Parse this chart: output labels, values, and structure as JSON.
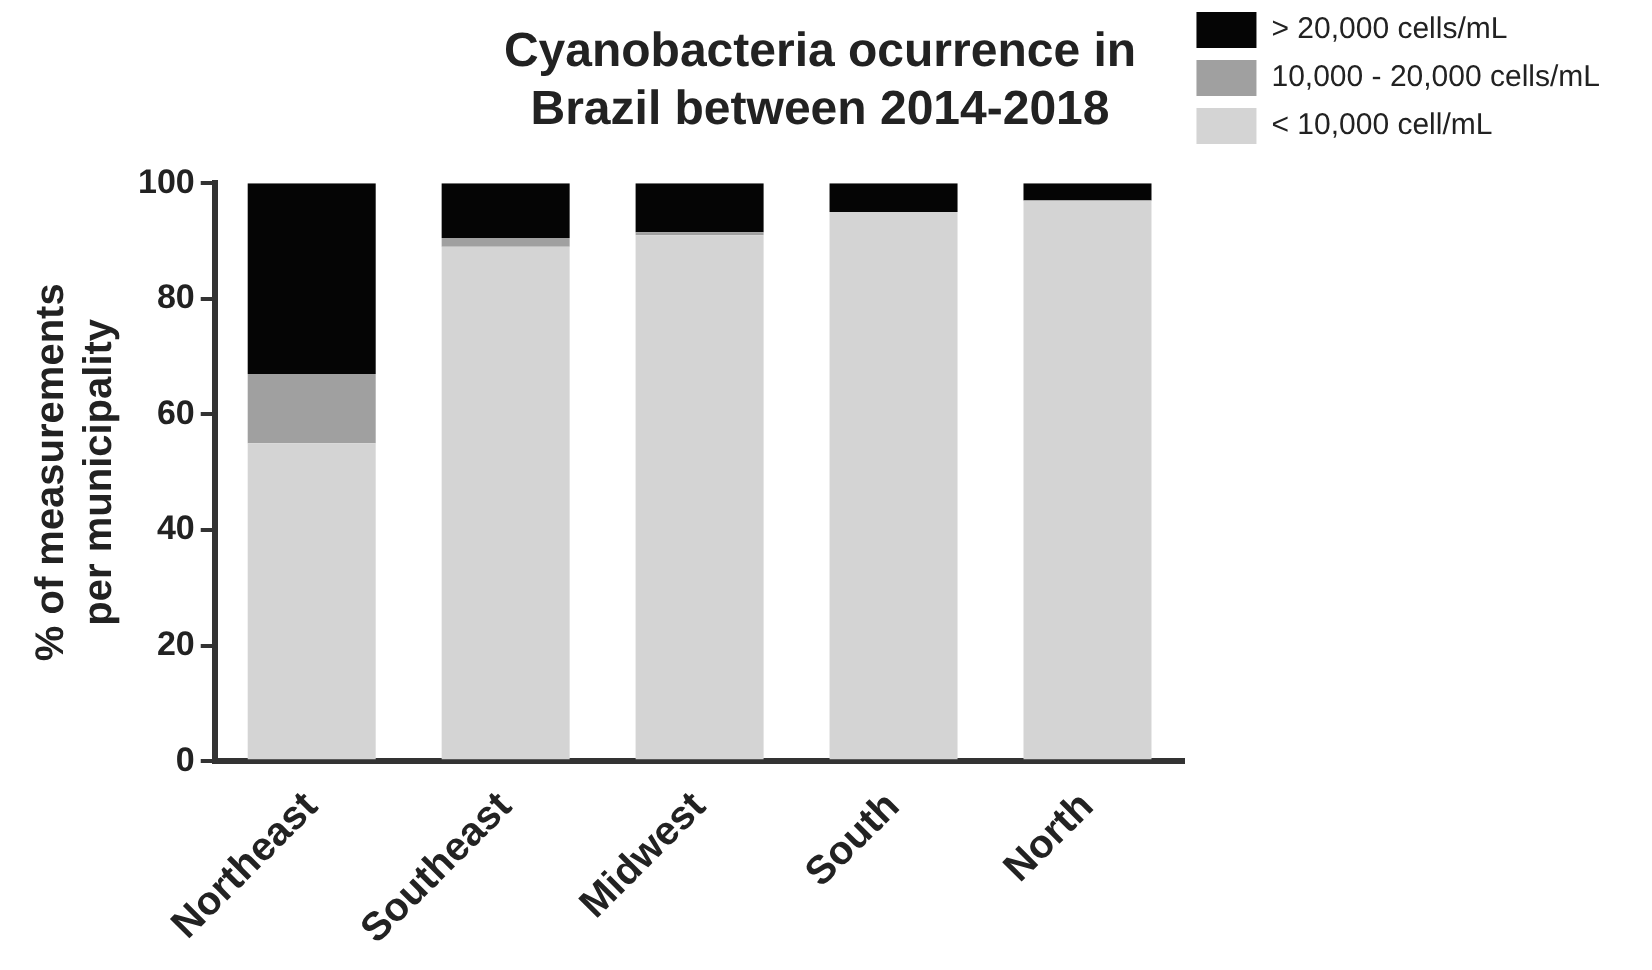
{
  "chart_data": {
    "type": "bar",
    "title": "Cyanobacteria ocurrence in Brazil between 2014-2018",
    "ylabel": "% of measurements per municipality",
    "categories": [
      "Northeast",
      "Southeast",
      "Midwest",
      "South",
      "North"
    ],
    "stacked": true,
    "ylim": [
      0,
      100
    ],
    "yticks": [
      0,
      20,
      40,
      60,
      80,
      100
    ],
    "grid": false,
    "legend": "top right",
    "series": [
      {
        "name": "< 10,000 cell/mL",
        "color": "#d4d4d4",
        "values": [
          55,
          89,
          91,
          95,
          97
        ]
      },
      {
        "name": "10,000 - 20,000 cells/mL",
        "color": "#a0a0a0",
        "values": [
          12,
          1.5,
          0.5,
          0,
          0
        ]
      },
      {
        "name": "> 20,000 cells/mL",
        "color": "#050505",
        "values": [
          33,
          9.5,
          8.5,
          5,
          3
        ]
      }
    ]
  }
}
